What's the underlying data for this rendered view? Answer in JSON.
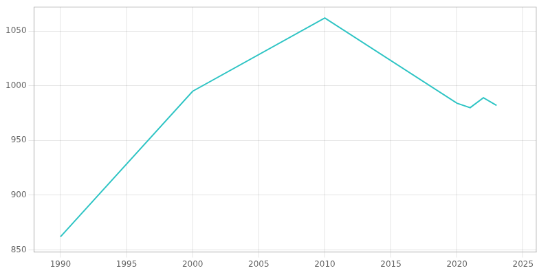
{
  "chart_data": {
    "type": "line",
    "x": [
      1990,
      2000,
      2010,
      2020,
      2021,
      2022,
      2023
    ],
    "values": [
      862,
      995,
      1062,
      984,
      980,
      989,
      982
    ],
    "color": "#2EC4C4",
    "xlim": [
      1988,
      2026
    ],
    "ylim": [
      848,
      1072
    ],
    "xticks": [
      1990,
      1995,
      2000,
      2005,
      2010,
      2015,
      2020,
      2025
    ],
    "yticks": [
      850,
      900,
      950,
      1000,
      1050
    ],
    "grid": true
  }
}
